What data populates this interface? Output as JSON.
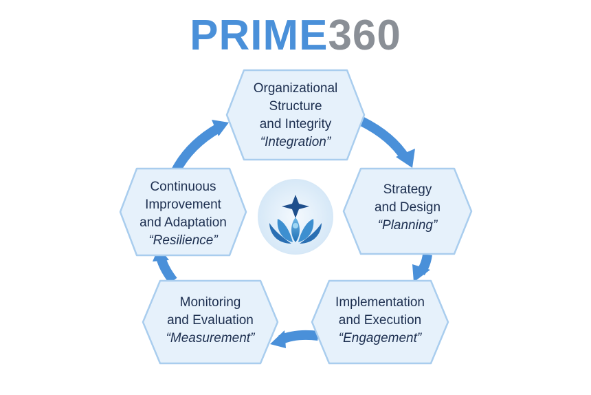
{
  "title": {
    "part1": "PRIME",
    "part2": "360"
  },
  "colors": {
    "title_blue": "#4a90d9",
    "title_gray": "#8a8f96",
    "hex_fill": "#e6f1fb",
    "hex_stroke": "#a9cdee",
    "arrow": "#4a90d9",
    "text": "#1c2e4f"
  },
  "stages": [
    {
      "line1": "Organizational",
      "line2": "Structure",
      "line3": "and Integrity",
      "tag": "“Integration”"
    },
    {
      "line1": "Strategy",
      "line2": "and Design",
      "tag": "“Planning”"
    },
    {
      "line1": "Implementation",
      "line2": "and Execution",
      "tag": "“Engagement”"
    },
    {
      "line1": "Monitoring",
      "line2": "and Evaluation",
      "tag": "“Measurement”"
    },
    {
      "line1": "Continuous",
      "line2": "Improvement",
      "line3": "and Adaptation",
      "tag": "“Resilience”"
    }
  ],
  "center_logo": {
    "icon": "star-lotus-logo"
  }
}
